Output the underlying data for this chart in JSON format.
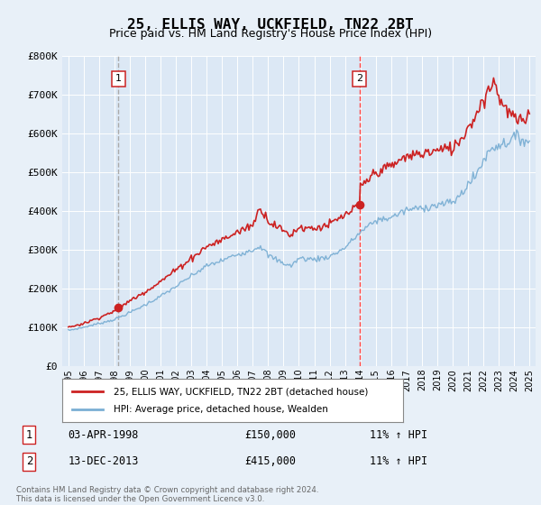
{
  "title": "25, ELLIS WAY, UCKFIELD, TN22 2BT",
  "subtitle": "Price paid vs. HM Land Registry's House Price Index (HPI)",
  "background_color": "#e8f0f8",
  "plot_bg_color": "#dce8f5",
  "ylim": [
    0,
    800000
  ],
  "yticks": [
    0,
    100000,
    200000,
    300000,
    400000,
    500000,
    600000,
    700000,
    800000
  ],
  "ytick_labels": [
    "£0",
    "£100K",
    "£200K",
    "£300K",
    "£400K",
    "£500K",
    "£600K",
    "£700K",
    "£800K"
  ],
  "sale1_year": 1998.25,
  "sale1_price": 150000,
  "sale1_label": "1",
  "sale1_date": "03-APR-1998",
  "sale1_hpi": "11% ↑ HPI",
  "sale2_year": 2013.95,
  "sale2_price": 415000,
  "sale2_label": "2",
  "sale2_date": "13-DEC-2013",
  "sale2_hpi": "11% ↑ HPI",
  "legend_line1": "25, ELLIS WAY, UCKFIELD, TN22 2BT (detached house)",
  "legend_line2": "HPI: Average price, detached house, Wealden",
  "footer": "Contains HM Land Registry data © Crown copyright and database right 2024.\nThis data is licensed under the Open Government Licence v3.0.",
  "hpi_color": "#7bafd4",
  "price_color": "#cc2222",
  "vline1_color": "#aaaaaa",
  "vline2_color": "#ff4444",
  "annotation_box_color": "#ffffff",
  "annotation_border_color": "#cc2222",
  "xlim_left": 1994.6,
  "xlim_right": 2025.4,
  "xticks": [
    1995,
    1996,
    1997,
    1998,
    1999,
    2000,
    2001,
    2002,
    2003,
    2004,
    2005,
    2006,
    2007,
    2008,
    2009,
    2010,
    2011,
    2012,
    2013,
    2014,
    2015,
    2016,
    2017,
    2018,
    2019,
    2020,
    2021,
    2022,
    2023,
    2024,
    2025
  ]
}
